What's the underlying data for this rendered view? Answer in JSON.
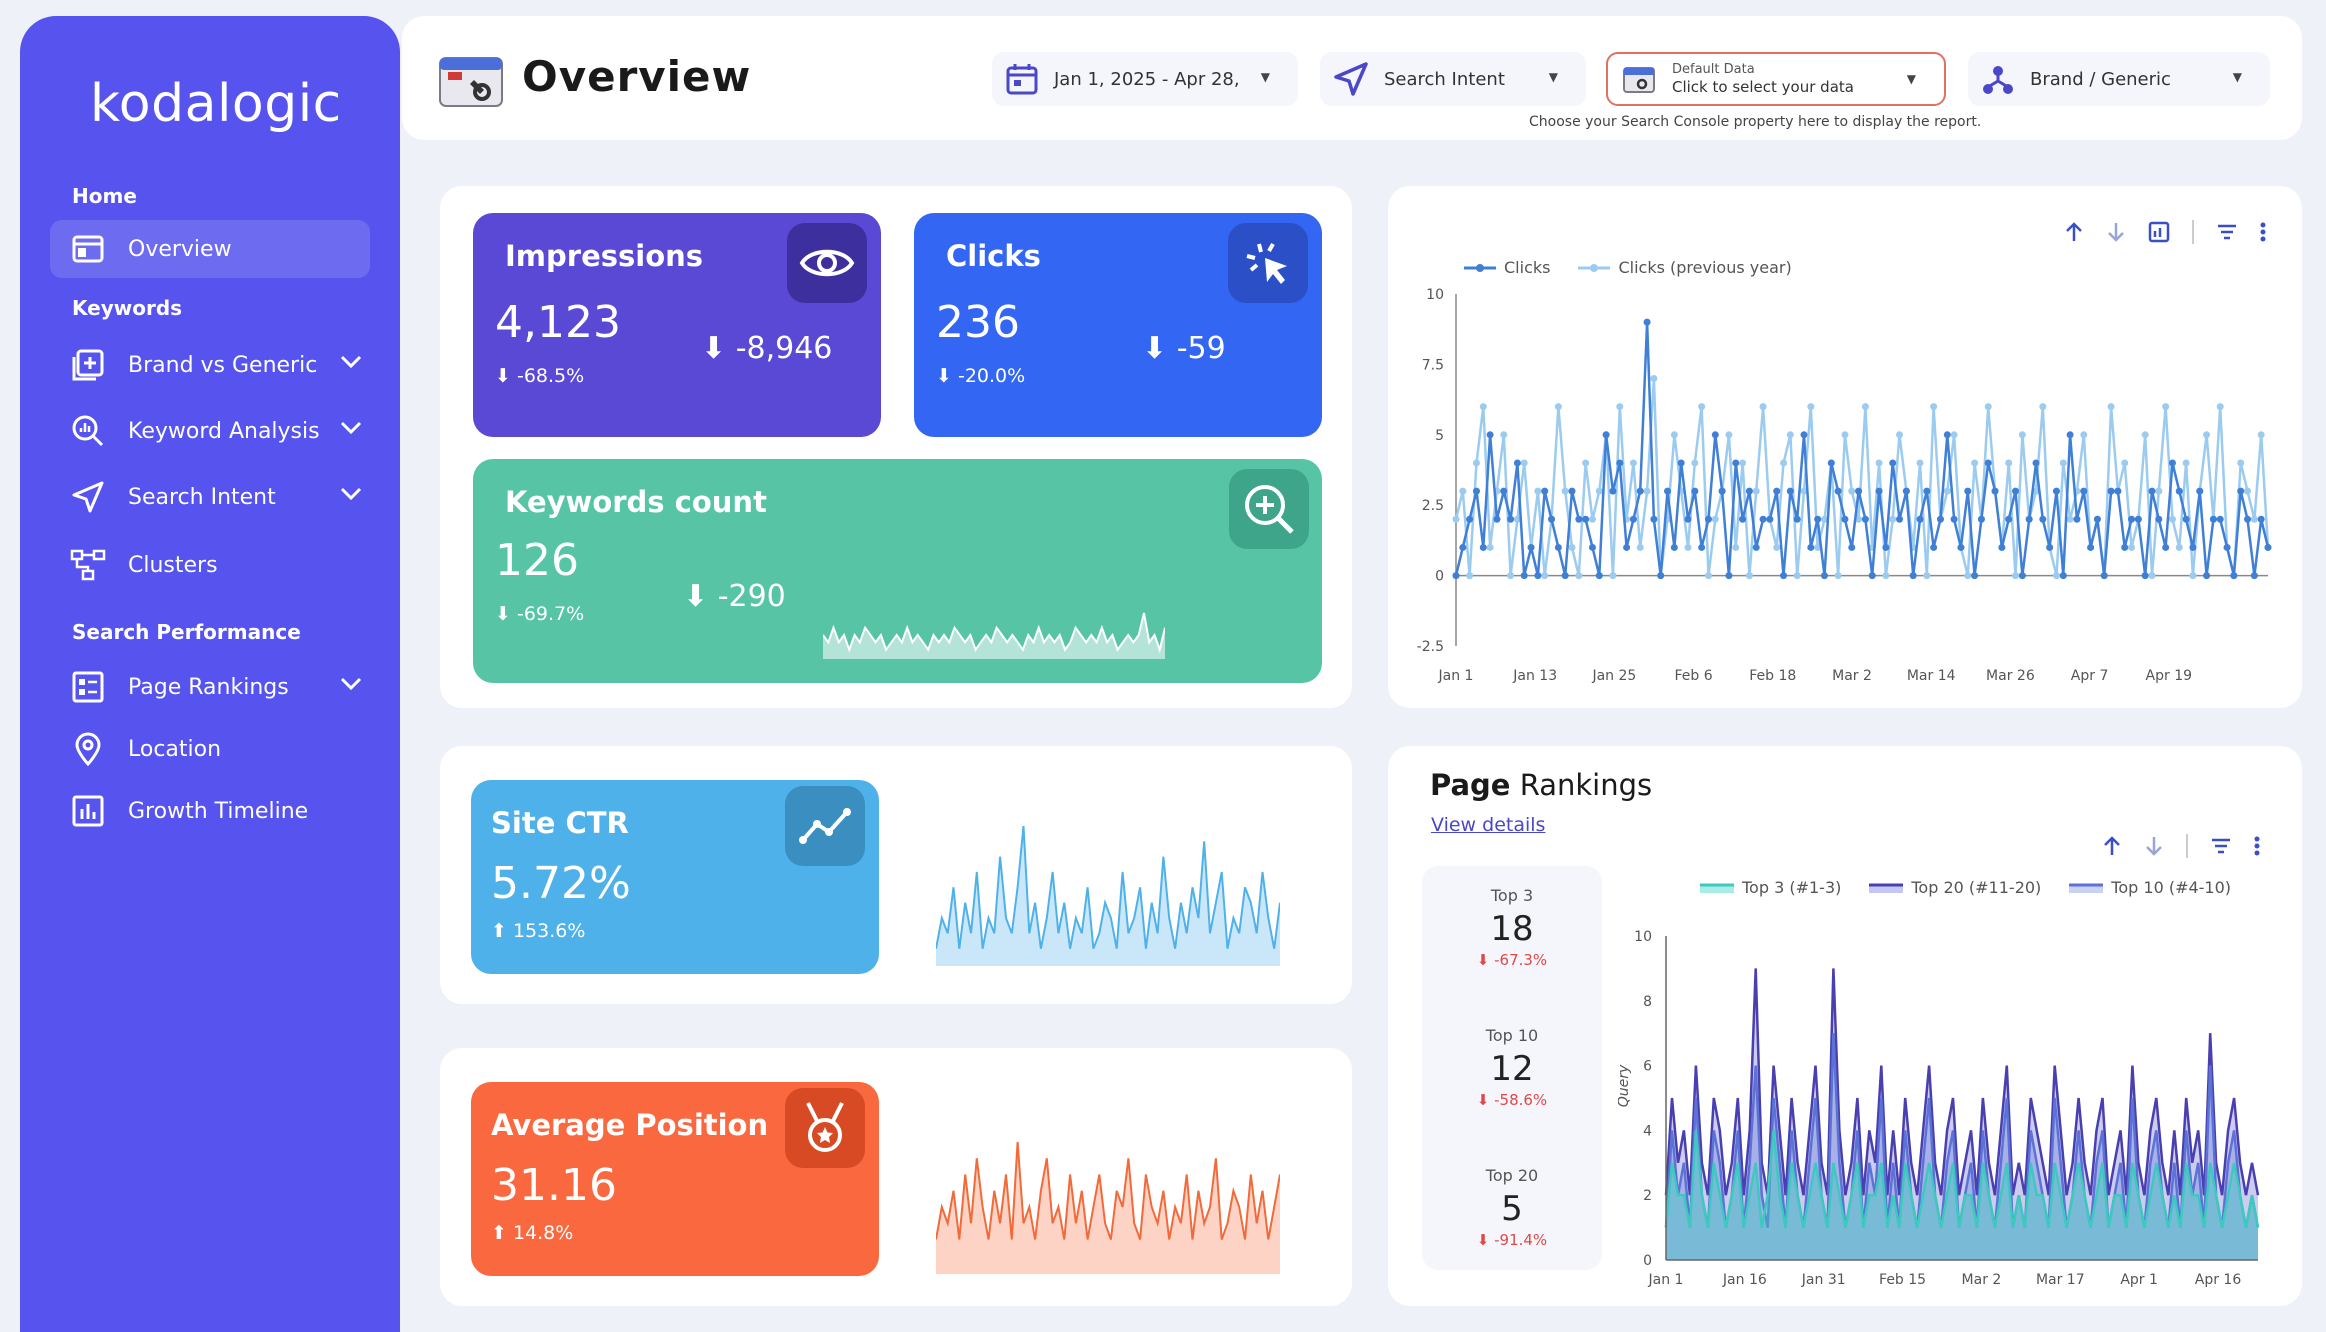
{
  "sidebar": {
    "logo": "kodalogic",
    "sections": {
      "home": "Home",
      "keywords": "Keywords",
      "performance": "Search Performance"
    },
    "items": [
      {
        "label": "Overview",
        "icon": "layout-icon"
      },
      {
        "label": "Brand vs Generic",
        "icon": "plus-square-icon"
      },
      {
        "label": "Keyword Analysis",
        "icon": "zoom-chart-icon"
      },
      {
        "label": "Search Intent",
        "icon": "navigation-arrow-icon"
      },
      {
        "label": "Clusters",
        "icon": "cluster-icon"
      },
      {
        "label": "Page Rankings",
        "icon": "grid-list-icon"
      },
      {
        "label": "Location",
        "icon": "map-pin-icon"
      },
      {
        "label": "Growth Timeline",
        "icon": "bar-chart-icon"
      }
    ]
  },
  "header": {
    "title": "Overview",
    "date_range": "Jan 1, 2025 - Apr 28,",
    "search_intent": "Search Intent",
    "data_source_title": "Default Data",
    "data_source_sub": "Click to select your data",
    "brand_filter": "Brand / Generic",
    "hint": "Choose your Search Console property here to display the report."
  },
  "kpis": {
    "impressions": {
      "title": "Impressions",
      "value": "4,123",
      "delta": "-68.5%",
      "abs": "-8,946",
      "color": "#5a49d4"
    },
    "clicks": {
      "title": "Clicks",
      "value": "236",
      "delta": "-20.0%",
      "abs": "-59",
      "color": "#3366f2"
    },
    "keywords": {
      "title": "Keywords count",
      "value": "126",
      "delta": "-69.7%",
      "abs": "-290",
      "color": "#57c4a6"
    },
    "ctr": {
      "title": "Site CTR",
      "value": "5.72%",
      "delta": "153.6%",
      "color": "#4fb1ea"
    },
    "position": {
      "title": "Average Position",
      "value": "31.16",
      "delta": "14.8%",
      "color": "#fa6840"
    }
  },
  "chart_data": [
    {
      "type": "line",
      "series": [
        {
          "name": "Clicks",
          "color": "#3f7fd6",
          "values": [
            0,
            1,
            2,
            3,
            1,
            5,
            2,
            3,
            2,
            4,
            0,
            1,
            0,
            3,
            2,
            1,
            0,
            3,
            2,
            2,
            1,
            0,
            5,
            3,
            4,
            1,
            2,
            3,
            9,
            2,
            0,
            3,
            1,
            4,
            2,
            3,
            1,
            2,
            5,
            3,
            0,
            4,
            2,
            3,
            1,
            2,
            2,
            3,
            0,
            3,
            2,
            5,
            1,
            2,
            0,
            4,
            3,
            2,
            1,
            3,
            2,
            0,
            3,
            1,
            4,
            2,
            3,
            0,
            2,
            3,
            1,
            2,
            5,
            2,
            1,
            3,
            0,
            2,
            4,
            3,
            1,
            2,
            3,
            0,
            2,
            4,
            2,
            1,
            3,
            0,
            5,
            2,
            3,
            1,
            2,
            0,
            3,
            3,
            1,
            2,
            2,
            0,
            3,
            2,
            1,
            4,
            3,
            2,
            1,
            3,
            0,
            2,
            2,
            1,
            0,
            3,
            2,
            0,
            2,
            1
          ]
        },
        {
          "name": "Clicks (previous year)",
          "color": "#9ccbf0",
          "values": [
            2,
            3,
            0,
            4,
            6,
            1,
            3,
            5,
            0,
            2,
            4,
            1,
            3,
            0,
            2,
            6,
            3,
            1,
            0,
            4,
            2,
            3,
            5,
            0,
            6,
            2,
            4,
            1,
            3,
            7,
            0,
            2,
            5,
            3,
            1,
            4,
            6,
            0,
            2,
            3,
            5,
            1,
            4,
            0,
            3,
            6,
            2,
            1,
            4,
            5,
            0,
            3,
            6,
            1,
            2,
            4,
            0,
            5,
            3,
            2,
            6,
            1,
            4,
            0,
            2,
            5,
            3,
            1,
            4,
            0,
            6,
            2,
            3,
            5,
            1,
            0,
            4,
            2,
            6,
            3,
            1,
            4,
            0,
            5,
            2,
            3,
            6,
            1,
            0,
            4,
            2,
            3,
            5,
            1,
            2,
            0,
            6,
            3,
            4,
            1,
            2,
            5,
            0,
            3,
            6,
            2,
            1,
            4,
            0,
            3,
            5,
            2,
            6,
            1,
            0,
            4,
            3,
            2,
            5,
            1
          ]
        }
      ],
      "x_ticks": [
        "Jan 1",
        "Jan 13",
        "Jan 25",
        "Feb 6",
        "Feb 18",
        "Mar 2",
        "Mar 14",
        "Mar 26",
        "Apr 7",
        "Apr 19"
      ],
      "y_ticks": [
        "10",
        "7.5",
        "5",
        "2.5",
        "0",
        "-2.5"
      ],
      "ylim": [
        -2.5,
        10
      ],
      "legend": "top-left"
    },
    {
      "type": "area",
      "title": "Page Rankings",
      "ylabel": "Query",
      "series": [
        {
          "name": "Top 3 (#1-3)",
          "color": "#3ec9c0",
          "values": [
            1,
            3,
            2,
            2,
            1,
            4,
            2,
            1,
            3,
            2,
            1,
            2,
            3,
            1,
            2,
            3,
            1,
            2,
            4,
            2,
            1,
            3,
            2,
            1,
            2,
            3,
            2,
            1,
            3,
            2,
            1,
            2,
            3,
            1,
            2,
            2,
            3,
            1,
            2,
            1,
            3,
            2,
            1,
            2,
            3,
            2,
            1,
            2,
            3,
            1,
            2,
            2,
            1,
            3,
            2,
            1,
            2,
            3,
            1,
            2,
            1,
            3,
            2,
            2,
            1,
            3,
            2,
            1,
            2,
            3,
            2,
            1,
            2,
            3,
            1,
            2,
            2,
            1,
            3,
            2,
            1,
            2,
            3,
            2,
            1,
            2,
            1,
            3,
            2,
            2,
            1,
            3,
            2,
            1,
            2,
            3,
            2,
            1,
            2,
            1
          ]
        },
        {
          "name": "Top 20 (#11-20)",
          "color": "#4a3fb0",
          "values": [
            2,
            5,
            3,
            4,
            2,
            6,
            3,
            2,
            5,
            4,
            2,
            3,
            5,
            2,
            4,
            9,
            3,
            2,
            6,
            4,
            2,
            5,
            3,
            2,
            4,
            6,
            3,
            2,
            9,
            4,
            2,
            3,
            5,
            2,
            4,
            3,
            6,
            2,
            4,
            2,
            5,
            3,
            2,
            4,
            6,
            3,
            2,
            4,
            5,
            2,
            3,
            4,
            2,
            5,
            3,
            2,
            4,
            6,
            2,
            3,
            2,
            5,
            4,
            3,
            2,
            6,
            4,
            2,
            3,
            5,
            3,
            2,
            4,
            5,
            2,
            3,
            4,
            2,
            6,
            3,
            2,
            4,
            5,
            3,
            2,
            4,
            2,
            5,
            3,
            4,
            2,
            7,
            3,
            2,
            4,
            5,
            3,
            2,
            3,
            2
          ]
        },
        {
          "name": "Top 10 (#4-10)",
          "color": "#5b72d6",
          "values": [
            1,
            4,
            2,
            3,
            1,
            5,
            2,
            1,
            4,
            3,
            1,
            2,
            4,
            1,
            3,
            6,
            2,
            1,
            5,
            3,
            1,
            4,
            2,
            1,
            3,
            5,
            2,
            1,
            7,
            3,
            1,
            2,
            4,
            1,
            3,
            2,
            5,
            1,
            3,
            1,
            4,
            2,
            1,
            3,
            5,
            2,
            1,
            3,
            4,
            1,
            2,
            3,
            1,
            4,
            2,
            1,
            3,
            5,
            1,
            2,
            1,
            4,
            3,
            2,
            1,
            5,
            3,
            1,
            2,
            4,
            2,
            1,
            3,
            4,
            1,
            2,
            3,
            1,
            5,
            2,
            1,
            3,
            4,
            2,
            1,
            3,
            1,
            4,
            2,
            3,
            1,
            6,
            2,
            1,
            3,
            4,
            2,
            1,
            2,
            1
          ]
        }
      ],
      "x_ticks": [
        "Jan 1",
        "Jan 16",
        "Jan 31",
        "Feb 15",
        "Mar 2",
        "Mar 17",
        "Apr 1",
        "Apr 16"
      ],
      "y_ticks": [
        "10",
        "8",
        "6",
        "4",
        "2",
        "0"
      ],
      "ylim": [
        0,
        10
      ],
      "legend": "top"
    }
  ],
  "sparklines": {
    "keywords": [
      3,
      2,
      4,
      2,
      3,
      1,
      3,
      2,
      4,
      3,
      2,
      3,
      1,
      2,
      3,
      2,
      4,
      2,
      3,
      2,
      1,
      3,
      2,
      3,
      2,
      4,
      3,
      2,
      3,
      1,
      2,
      3,
      2,
      4,
      3,
      2,
      3,
      2,
      1,
      3,
      2,
      4,
      2,
      3,
      2,
      3,
      1,
      2,
      4,
      3,
      2,
      3,
      2,
      4,
      2,
      3,
      1,
      2,
      3,
      2,
      3,
      6,
      2,
      3,
      1,
      4
    ],
    "ctr": [
      1,
      3,
      2,
      5,
      1,
      4,
      2,
      6,
      1,
      3,
      2,
      7,
      3,
      2,
      5,
      9,
      2,
      4,
      1,
      3,
      6,
      2,
      4,
      1,
      3,
      2,
      5,
      1,
      2,
      4,
      3,
      1,
      6,
      2,
      3,
      5,
      1,
      4,
      2,
      7,
      3,
      1,
      4,
      2,
      5,
      3,
      8,
      2,
      4,
      6,
      1,
      3,
      2,
      5,
      4,
      2,
      6,
      3,
      1,
      4
    ],
    "position": [
      2,
      4,
      3,
      5,
      2,
      6,
      3,
      7,
      4,
      2,
      5,
      3,
      6,
      2,
      8,
      3,
      4,
      2,
      5,
      7,
      3,
      4,
      2,
      6,
      3,
      5,
      2,
      4,
      6,
      3,
      2,
      5,
      4,
      7,
      3,
      2,
      6,
      4,
      3,
      5,
      2,
      4,
      3,
      6,
      2,
      5,
      3,
      4,
      7,
      2,
      3,
      5,
      4,
      2,
      6,
      3,
      5,
      2,
      4,
      6
    ]
  },
  "page_rankings": {
    "title_bold": "Page",
    "title_rest": " Rankings",
    "link": "View details",
    "items": [
      {
        "label": "Top 3",
        "value": "18",
        "delta": "-67.3%"
      },
      {
        "label": "Top 10",
        "value": "12",
        "delta": "-58.6%"
      },
      {
        "label": "Top 20",
        "value": "5",
        "delta": "-91.4%"
      }
    ]
  }
}
